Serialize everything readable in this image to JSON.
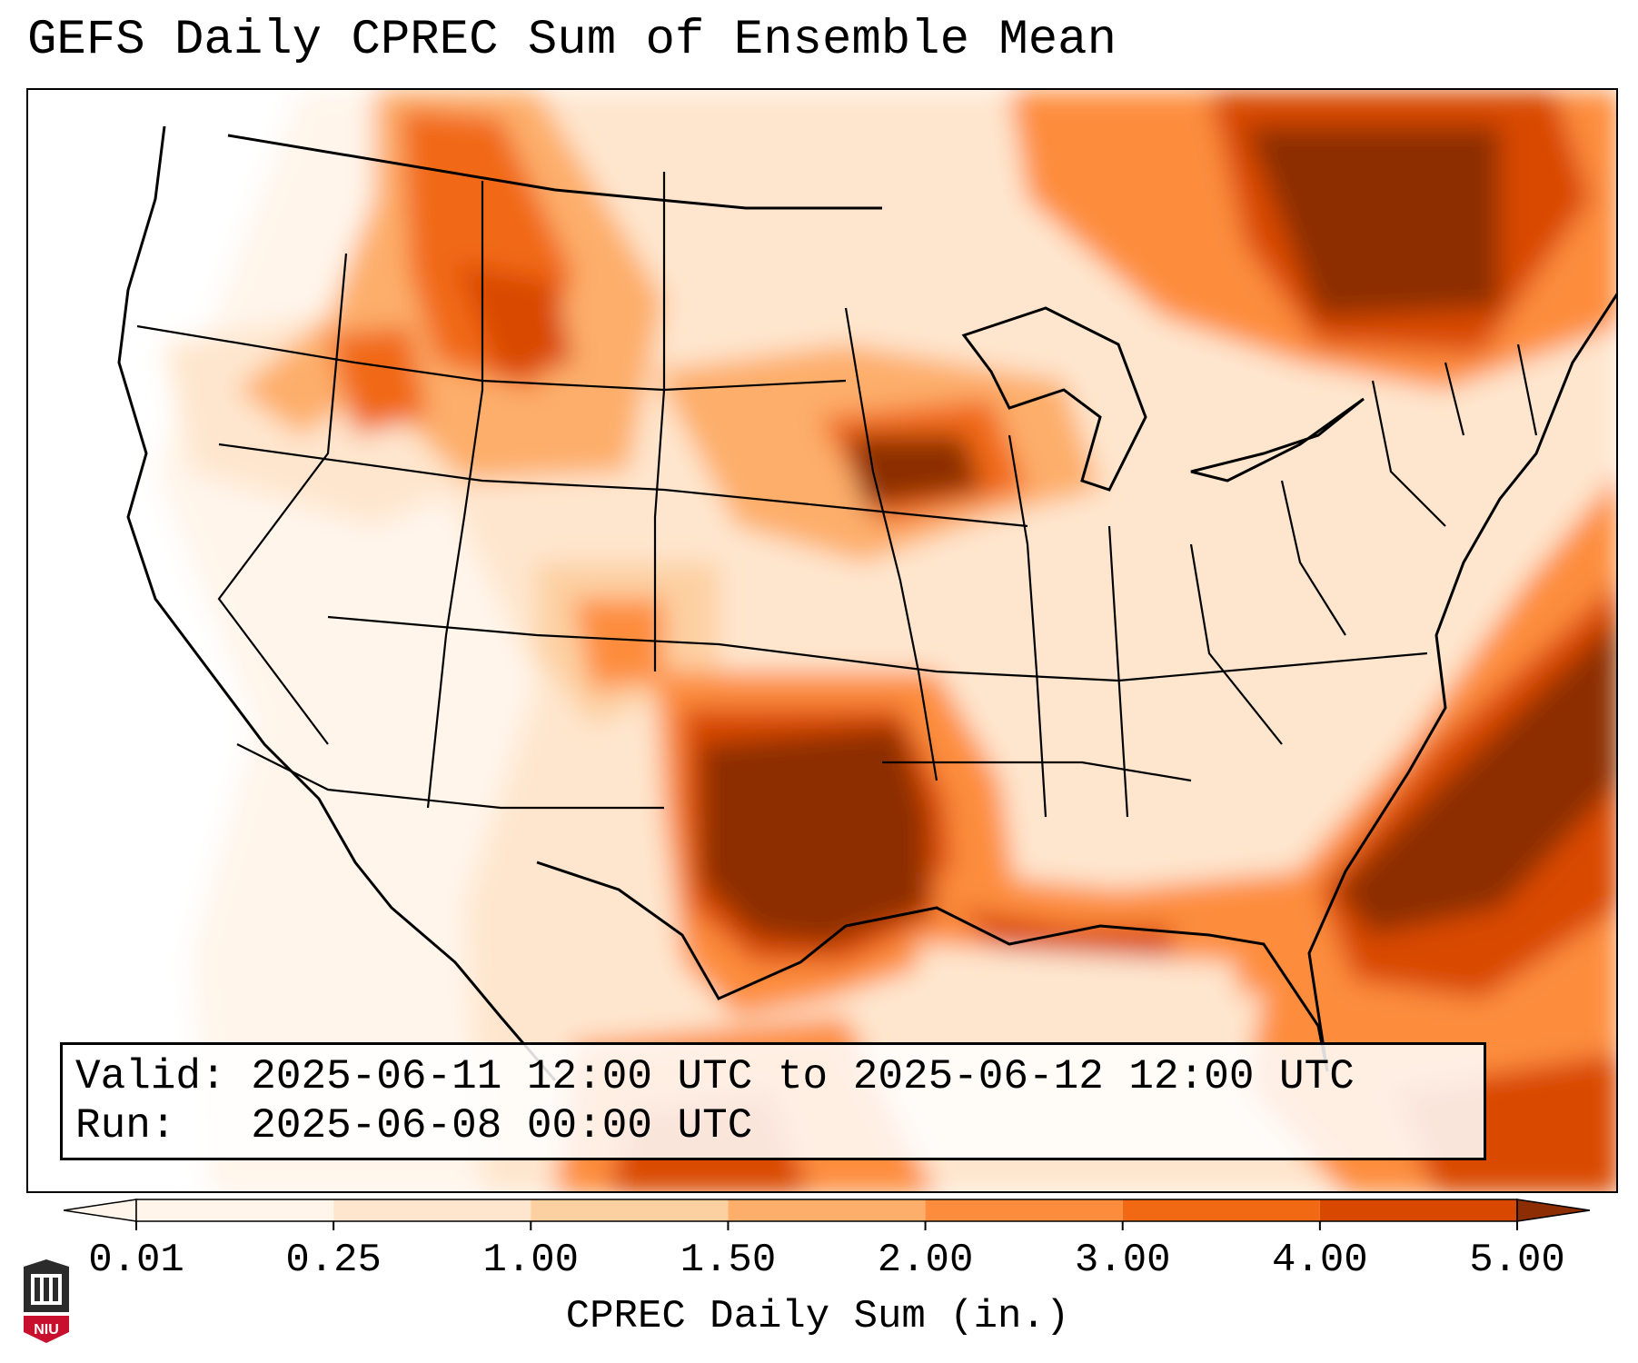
{
  "title": "GEFS Daily CPREC Sum of Ensemble Mean",
  "info": {
    "valid_label": "Valid:",
    "valid_value": "2025-06-11 12:00 UTC to 2025-06-12 12:00 UTC",
    "run_label": "Run:",
    "run_value": "2025-06-08 00:00 UTC"
  },
  "colorbar": {
    "label": "CPREC Daily Sum (in.)",
    "ticks": [
      "0.01",
      "0.25",
      "1.00",
      "1.50",
      "2.00",
      "3.00",
      "4.00",
      "5.00"
    ],
    "colors": [
      "#fff5eb",
      "#fee6ce",
      "#fdd0a2",
      "#fdae6b",
      "#fd8d3c",
      "#f16913",
      "#d94801",
      "#8c2d04"
    ],
    "under_color": "#fff5eb",
    "over_color": "#8c2d04"
  },
  "logo": {
    "text": "NIU",
    "icon": "niu-castle-logo-icon"
  },
  "map": {
    "region": "Continental United States",
    "levels_colors": {
      "trace": "#fff5eb",
      "light": "#fee6ce",
      "moderate": "#fdd0a2",
      "heavy": "#fd8d3c",
      "very_heavy": "#d94801",
      "extreme": "#8c2d04"
    }
  }
}
